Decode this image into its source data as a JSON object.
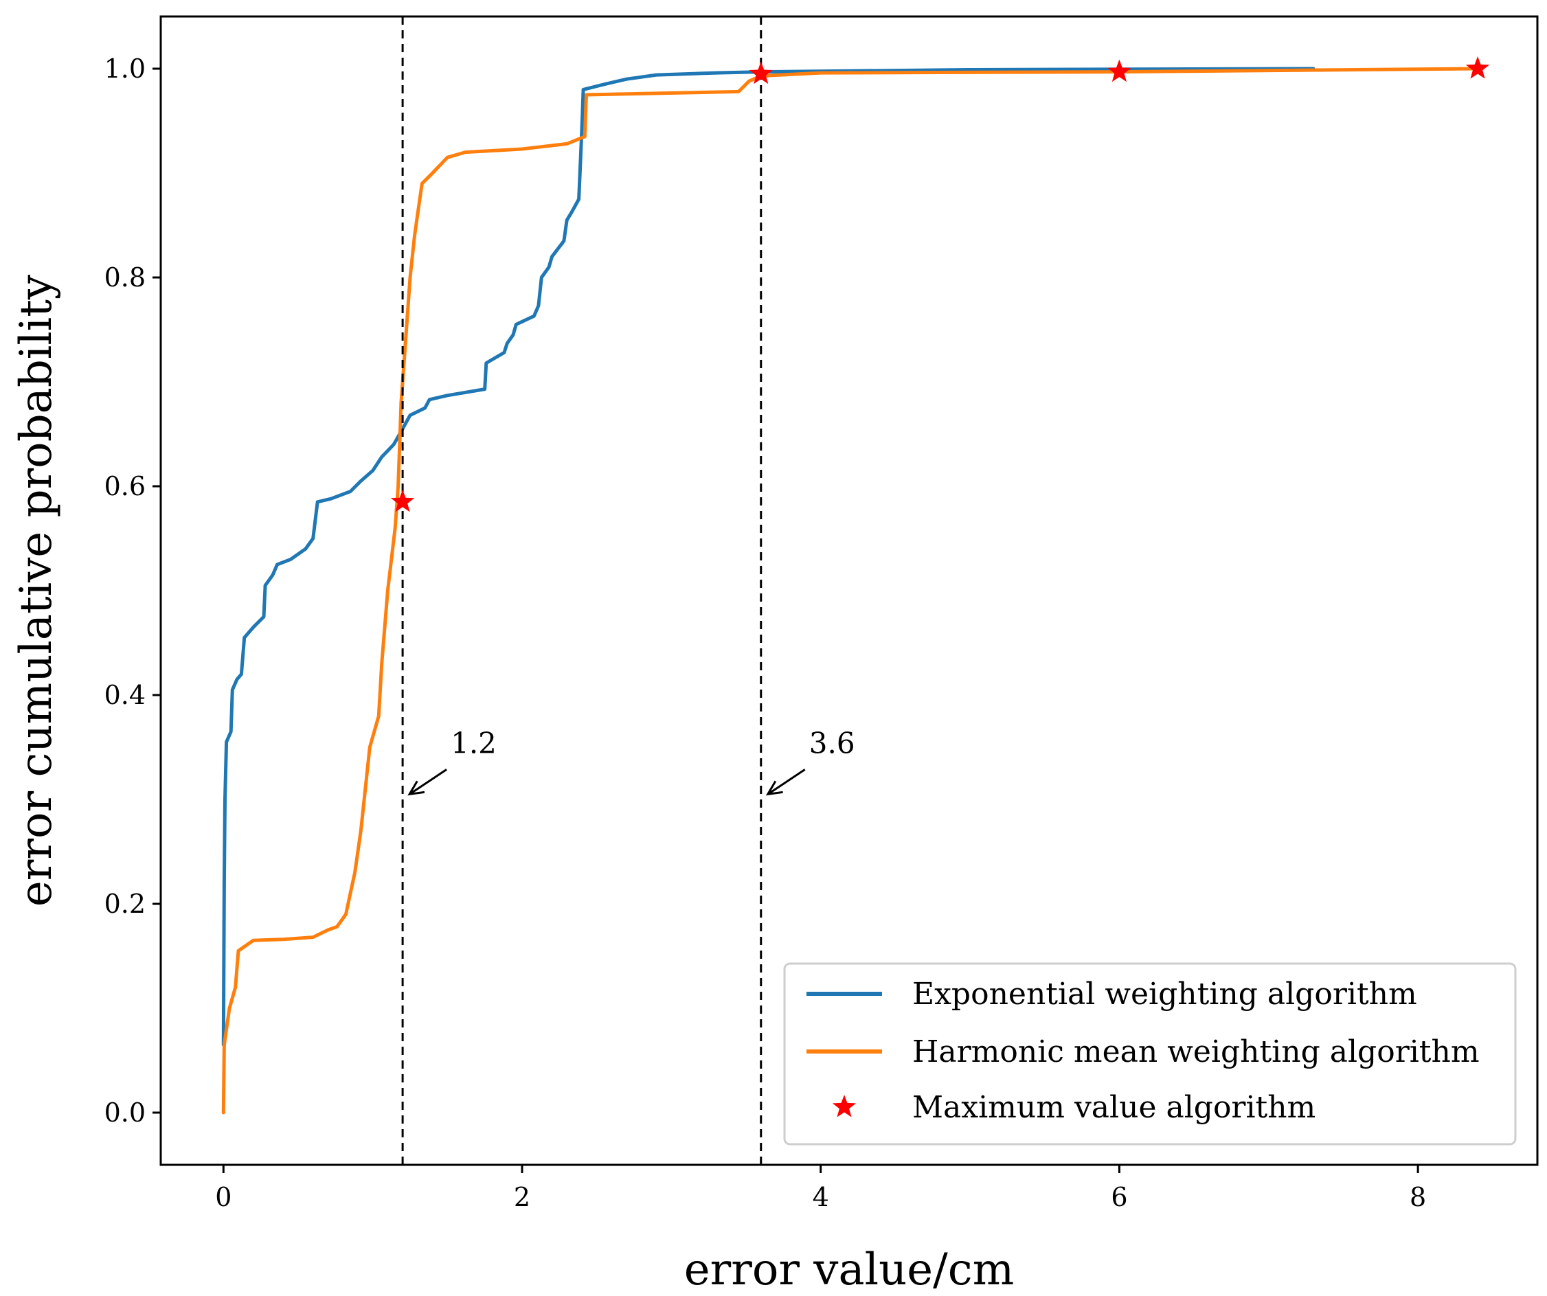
{
  "chart_data": {
    "type": "line",
    "title": "",
    "xlabel": "error value/cm",
    "ylabel": "error cumulative probability",
    "xlim": [
      -0.42,
      8.8
    ],
    "ylim": [
      -0.05,
      1.05
    ],
    "xticks": [
      0,
      2,
      4,
      6,
      8
    ],
    "xtick_labels": [
      "0",
      "2",
      "4",
      "6",
      "8"
    ],
    "yticks": [
      0.0,
      0.2,
      0.4,
      0.6,
      0.8,
      1.0
    ],
    "ytick_labels": [
      "0.0",
      "0.2",
      "0.4",
      "0.6",
      "0.8",
      "1.0"
    ],
    "grid": false,
    "legend_position": "bottom-right",
    "series": [
      {
        "name": "Exponential weighting algorithm",
        "color": "#1f77b4",
        "points": [
          [
            0.0,
            0.065
          ],
          [
            0.005,
            0.22
          ],
          [
            0.01,
            0.3
          ],
          [
            0.02,
            0.355
          ],
          [
            0.05,
            0.365
          ],
          [
            0.06,
            0.405
          ],
          [
            0.09,
            0.415
          ],
          [
            0.12,
            0.42
          ],
          [
            0.14,
            0.455
          ],
          [
            0.2,
            0.465
          ],
          [
            0.27,
            0.475
          ],
          [
            0.28,
            0.505
          ],
          [
            0.33,
            0.515
          ],
          [
            0.36,
            0.525
          ],
          [
            0.45,
            0.53
          ],
          [
            0.55,
            0.54
          ],
          [
            0.6,
            0.55
          ],
          [
            0.63,
            0.585
          ],
          [
            0.72,
            0.588
          ],
          [
            0.85,
            0.595
          ],
          [
            0.92,
            0.605
          ],
          [
            1.0,
            0.615
          ],
          [
            1.06,
            0.628
          ],
          [
            1.14,
            0.64
          ],
          [
            1.2,
            0.655
          ],
          [
            1.25,
            0.668
          ],
          [
            1.35,
            0.675
          ],
          [
            1.38,
            0.683
          ],
          [
            1.5,
            0.687
          ],
          [
            1.75,
            0.693
          ],
          [
            1.76,
            0.718
          ],
          [
            1.88,
            0.728
          ],
          [
            1.9,
            0.737
          ],
          [
            1.94,
            0.745
          ],
          [
            1.96,
            0.755
          ],
          [
            2.08,
            0.763
          ],
          [
            2.11,
            0.773
          ],
          [
            2.13,
            0.8
          ],
          [
            2.18,
            0.81
          ],
          [
            2.2,
            0.82
          ],
          [
            2.28,
            0.835
          ],
          [
            2.3,
            0.855
          ],
          [
            2.33,
            0.862
          ],
          [
            2.38,
            0.875
          ],
          [
            2.4,
            0.94
          ],
          [
            2.41,
            0.98
          ],
          [
            2.55,
            0.985
          ],
          [
            2.7,
            0.99
          ],
          [
            2.9,
            0.994
          ],
          [
            3.3,
            0.996
          ],
          [
            3.6,
            0.997
          ],
          [
            5.0,
            0.999
          ],
          [
            7.3,
            1.0
          ]
        ]
      },
      {
        "name": "Harmonic mean weighting algorithm",
        "color": "#ff7f0e",
        "points": [
          [
            0.0,
            0.0
          ],
          [
            0.005,
            0.065
          ],
          [
            0.04,
            0.1
          ],
          [
            0.08,
            0.12
          ],
          [
            0.1,
            0.155
          ],
          [
            0.2,
            0.165
          ],
          [
            0.4,
            0.166
          ],
          [
            0.6,
            0.168
          ],
          [
            0.7,
            0.175
          ],
          [
            0.76,
            0.178
          ],
          [
            0.82,
            0.19
          ],
          [
            0.85,
            0.21
          ],
          [
            0.88,
            0.23
          ],
          [
            0.92,
            0.27
          ],
          [
            0.95,
            0.31
          ],
          [
            0.98,
            0.35
          ],
          [
            1.04,
            0.38
          ],
          [
            1.06,
            0.43
          ],
          [
            1.1,
            0.5
          ],
          [
            1.15,
            0.56
          ],
          [
            1.17,
            0.6
          ],
          [
            1.18,
            0.64
          ],
          [
            1.19,
            0.68
          ],
          [
            1.2,
            0.7
          ],
          [
            1.22,
            0.74
          ],
          [
            1.25,
            0.8
          ],
          [
            1.28,
            0.84
          ],
          [
            1.3,
            0.86
          ],
          [
            1.33,
            0.89
          ],
          [
            1.4,
            0.9
          ],
          [
            1.5,
            0.915
          ],
          [
            1.62,
            0.92
          ],
          [
            2.0,
            0.923
          ],
          [
            2.3,
            0.928
          ],
          [
            2.42,
            0.935
          ],
          [
            2.43,
            0.975
          ],
          [
            3.45,
            0.978
          ],
          [
            3.52,
            0.988
          ],
          [
            3.6,
            0.993
          ],
          [
            4.0,
            0.996
          ],
          [
            6.0,
            0.997
          ],
          [
            8.4,
            1.0
          ]
        ]
      }
    ],
    "markers": {
      "name": "Maximum value algorithm",
      "color": "#ff0000",
      "points": [
        [
          1.2,
          0.585
        ],
        [
          3.6,
          0.995
        ],
        [
          6.0,
          0.997
        ],
        [
          8.4,
          1.0
        ]
      ]
    },
    "vlines": [
      {
        "x": 1.2,
        "label": "1.2",
        "arrow_y": 0.305
      },
      {
        "x": 3.6,
        "label": "3.6",
        "arrow_y": 0.305
      }
    ]
  }
}
